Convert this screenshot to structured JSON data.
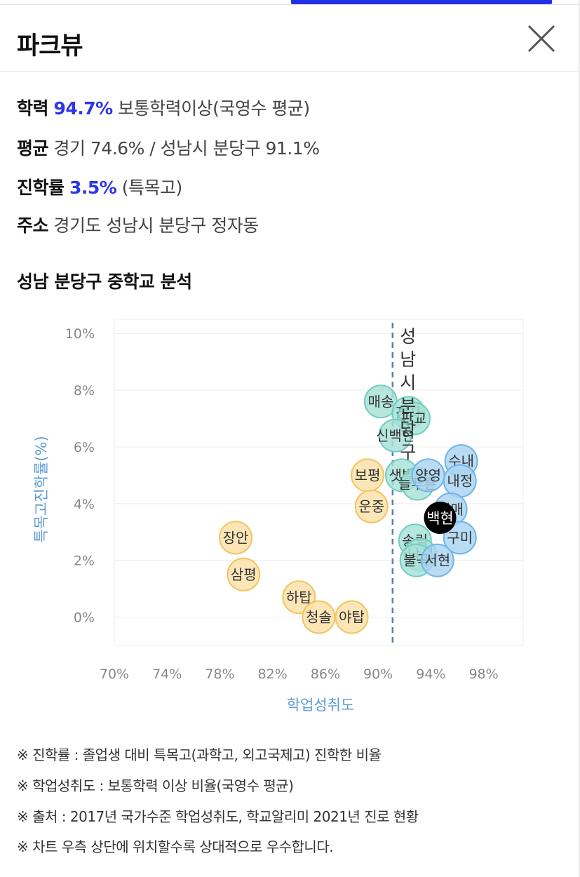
{
  "header": {
    "title": "파크뷰"
  },
  "info": {
    "achievement": {
      "label": "학력",
      "value": "94.7%",
      "desc": "보통학력이상(국영수 평균)"
    },
    "average": {
      "label": "평균",
      "value": "경기 74.6% / 성남시 분당구 91.1%"
    },
    "advancement": {
      "label": "진학률",
      "value": "3.5%",
      "desc": "(특목고)"
    },
    "address": {
      "label": "주소",
      "value": "경기도 성남시 분당구 정자동"
    }
  },
  "section": {
    "title": "성남 분당구 중학교 분석"
  },
  "colors": {
    "yellow_fill": "#fbe0a8",
    "yellow_stroke": "#f2c461",
    "teal_fill": "#a7e0d8",
    "teal_stroke": "#6fcfc1",
    "blue_fill": "#a9d3f2",
    "blue_stroke": "#6fb6e8",
    "highlight": "#000000",
    "axis_label": "#5b9bd5",
    "ref_line": "#5a7fa8"
  },
  "chart_data": {
    "type": "scatter",
    "xlabel": "학업성취도",
    "ylabel": "특목고진학률(%)",
    "xlim": [
      70,
      101
    ],
    "ylim": [
      -1,
      10.5
    ],
    "x_ticks": [
      "70%",
      "74%",
      "78%",
      "82%",
      "86%",
      "90%",
      "94%",
      "98%"
    ],
    "x_tick_values": [
      70,
      74,
      78,
      82,
      86,
      90,
      94,
      98
    ],
    "y_ticks": [
      "10%",
      "8%",
      "6%",
      "4%",
      "2%",
      "0%"
    ],
    "y_tick_values": [
      10,
      8,
      6,
      4,
      2,
      0
    ],
    "reference_line": {
      "x": 91.1,
      "label": "성남시 분당구"
    },
    "grid": true,
    "points": [
      {
        "name": "장안",
        "x": 79.2,
        "y": 2.8,
        "group": "yellow"
      },
      {
        "name": "삼평",
        "x": 79.8,
        "y": 1.5,
        "group": "yellow"
      },
      {
        "name": "하탑",
        "x": 84.0,
        "y": 0.7,
        "group": "yellow"
      },
      {
        "name": "청솔",
        "x": 85.5,
        "y": 0.0,
        "group": "yellow"
      },
      {
        "name": "야탑",
        "x": 88.0,
        "y": 0.0,
        "group": "yellow"
      },
      {
        "name": "보평",
        "x": 89.2,
        "y": 5.0,
        "group": "yellow"
      },
      {
        "name": "운중",
        "x": 89.5,
        "y": 3.9,
        "group": "yellow"
      },
      {
        "name": "매송",
        "x": 90.2,
        "y": 7.6,
        "group": "teal"
      },
      {
        "name": "정자",
        "x": 92.3,
        "y": 7.2,
        "group": "teal"
      },
      {
        "name": "판교",
        "x": 92.7,
        "y": 7.0,
        "group": "teal"
      },
      {
        "name": "신백현",
        "x": 91.3,
        "y": 6.4,
        "group": "teal"
      },
      {
        "name": "샛별",
        "x": 91.8,
        "y": 5.0,
        "group": "teal"
      },
      {
        "name": "늘푸른",
        "x": 93.0,
        "y": 4.7,
        "group": "teal"
      },
      {
        "name": "송림",
        "x": 92.8,
        "y": 2.7,
        "group": "teal"
      },
      {
        "name": "낙생",
        "x": 93.2,
        "y": 2.2,
        "group": "teal"
      },
      {
        "name": "불곡",
        "x": 92.9,
        "y": 2.0,
        "group": "teal"
      },
      {
        "name": "양영",
        "x": 93.8,
        "y": 5.0,
        "group": "blue"
      },
      {
        "name": "수내",
        "x": 96.3,
        "y": 5.5,
        "group": "blue"
      },
      {
        "name": "내정",
        "x": 96.2,
        "y": 4.8,
        "group": "blue"
      },
      {
        "name": "이매",
        "x": 95.5,
        "y": 3.8,
        "group": "blue"
      },
      {
        "name": "구미",
        "x": 96.2,
        "y": 2.8,
        "group": "blue"
      },
      {
        "name": "서현",
        "x": 94.5,
        "y": 2.0,
        "group": "blue"
      },
      {
        "name": "백현",
        "x": 94.7,
        "y": 3.5,
        "group": "highlight"
      }
    ]
  },
  "notes": [
    "※ 진학률 : 졸업생 대비 특목고(과학고, 외고국제고) 진학한 비율",
    "※ 학업성취도 : 보통학력 이상 비율(국영수 평균)",
    "※ 출처 : 2017년 국가수준 학업성취도, 학교알리미 2021년 진로 현황",
    "※ 차트 우측 상단에 위치할수록 상대적으로 우수합니다."
  ]
}
